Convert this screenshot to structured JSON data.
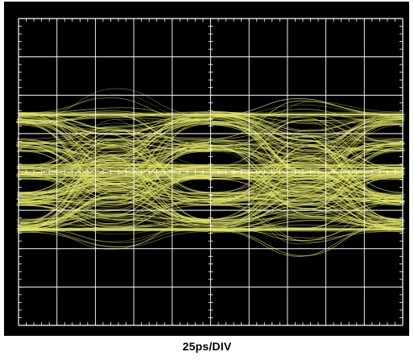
{
  "chart_data": {
    "type": "line",
    "title": "",
    "xlabel": "25ps/DIV",
    "ylabel": "",
    "x_divisions": 10,
    "y_divisions": 8,
    "x_ps_per_div": 25,
    "xlim_ps": [
      0,
      250
    ],
    "ylim_div": [
      -4,
      4
    ],
    "eye": {
      "levels_div": [
        -1.4,
        -0.7,
        0.0,
        0.7,
        1.4
      ],
      "outer_top_div": 1.5,
      "outer_bottom_div": -1.5,
      "crossing_times_ps": [
        0,
        125,
        250
      ],
      "trace_count": 420
    },
    "grid": true,
    "legend": "none",
    "colors": {
      "background": "#000000",
      "grid": "#ffffff",
      "trace": "#e4e86a",
      "frame": "#ffffff"
    }
  }
}
